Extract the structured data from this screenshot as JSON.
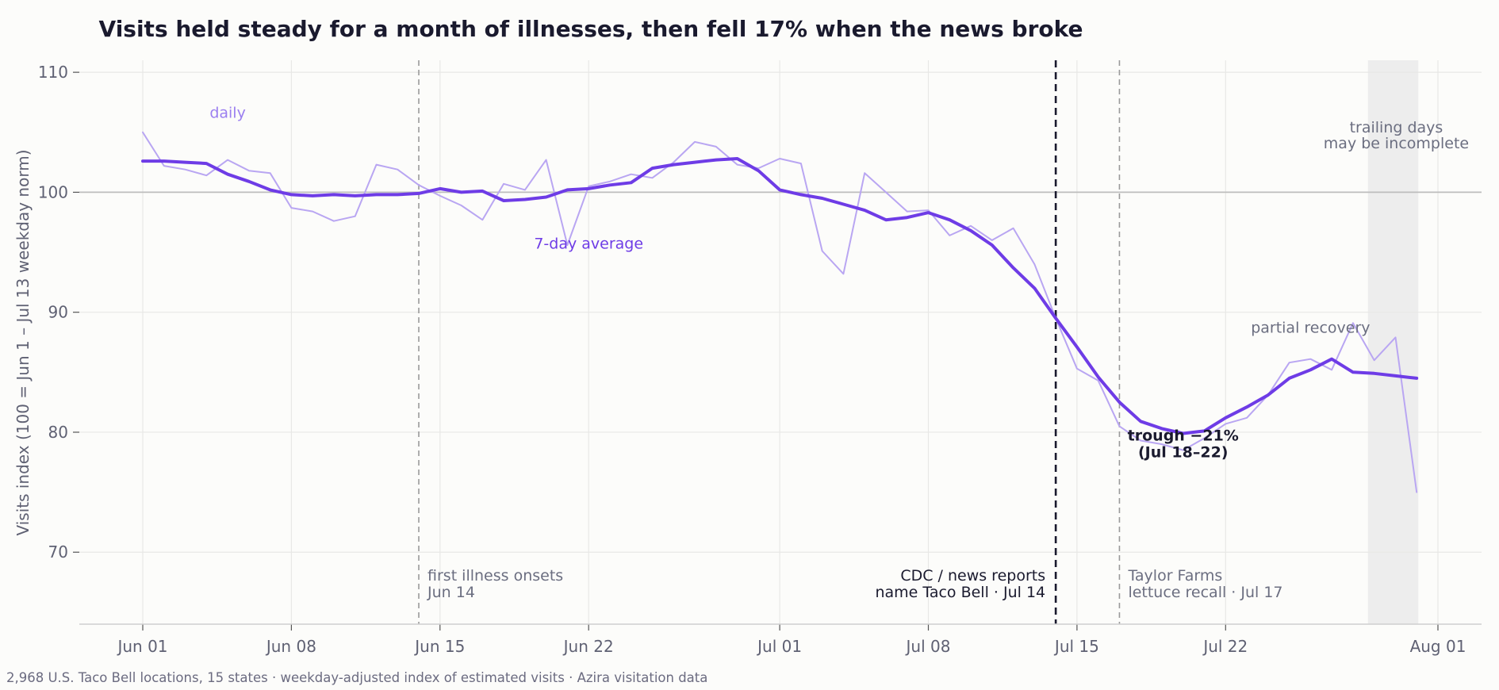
{
  "chart_data": {
    "type": "line",
    "title": "Visits held steady for a month of illnesses, then fell 17% when the news broke",
    "ylabel": "Visits index (100 = Jun 1 – Jul 13 weekday norm)",
    "xlabel": "",
    "ylim": [
      64,
      111
    ],
    "yticks": [
      70,
      80,
      90,
      100,
      110
    ],
    "x_range": [
      "2025-05-27",
      "2025-08-04"
    ],
    "x_ticks": [
      {
        "date": "2025-06-01",
        "label": "Jun 01"
      },
      {
        "date": "2025-06-08",
        "label": "Jun 08"
      },
      {
        "date": "2025-06-15",
        "label": "Jun 15"
      },
      {
        "date": "2025-06-22",
        "label": "Jun 22"
      },
      {
        "date": "2025-07-01",
        "label": "Jul 01"
      },
      {
        "date": "2025-07-08",
        "label": "Jul 08"
      },
      {
        "date": "2025-07-15",
        "label": "Jul 15"
      },
      {
        "date": "2025-07-22",
        "label": "Jul 22"
      },
      {
        "date": "2025-08-01",
        "label": "Aug 01"
      }
    ],
    "grid": true,
    "reference_line": 100,
    "shaded_region": {
      "x_start": "2025-07-29",
      "x_end": "2025-07-31",
      "label": "trailing days\nmay be incomplete"
    },
    "colors": {
      "avg": "#6e3ce6",
      "daily": "#b9a6f2",
      "text": "#1a1a2e",
      "muted": "#6b6e80",
      "grid": "#e8e8e6",
      "baseline": "#bdbdbd",
      "shade": "#ededed"
    },
    "x": [
      "2025-06-01",
      "2025-06-02",
      "2025-06-03",
      "2025-06-04",
      "2025-06-05",
      "2025-06-06",
      "2025-06-07",
      "2025-06-08",
      "2025-06-09",
      "2025-06-10",
      "2025-06-11",
      "2025-06-12",
      "2025-06-13",
      "2025-06-14",
      "2025-06-15",
      "2025-06-16",
      "2025-06-17",
      "2025-06-18",
      "2025-06-19",
      "2025-06-20",
      "2025-06-21",
      "2025-06-22",
      "2025-06-23",
      "2025-06-24",
      "2025-06-25",
      "2025-06-26",
      "2025-06-27",
      "2025-06-28",
      "2025-06-29",
      "2025-06-30",
      "2025-07-01",
      "2025-07-02",
      "2025-07-03",
      "2025-07-04",
      "2025-07-05",
      "2025-07-06",
      "2025-07-07",
      "2025-07-08",
      "2025-07-09",
      "2025-07-10",
      "2025-07-11",
      "2025-07-12",
      "2025-07-13",
      "2025-07-14",
      "2025-07-15",
      "2025-07-16",
      "2025-07-17",
      "2025-07-18",
      "2025-07-19",
      "2025-07-20",
      "2025-07-21",
      "2025-07-22",
      "2025-07-23",
      "2025-07-24",
      "2025-07-25",
      "2025-07-26",
      "2025-07-27",
      "2025-07-28",
      "2025-07-29",
      "2025-07-30",
      "2025-07-31"
    ],
    "series": [
      {
        "name": "daily",
        "style": "thin",
        "values": [
          105.0,
          102.2,
          101.9,
          101.4,
          102.7,
          101.8,
          101.6,
          98.7,
          98.4,
          97.6,
          98.0,
          102.3,
          101.9,
          100.6,
          99.7,
          98.9,
          97.7,
          100.7,
          100.2,
          102.7,
          95.6,
          100.5,
          100.9,
          101.5,
          101.2,
          102.5,
          104.2,
          103.8,
          102.3,
          102.0,
          102.8,
          102.4,
          95.1,
          93.2,
          101.6,
          100.0,
          98.4,
          98.5,
          96.4,
          97.2,
          96.0,
          97.0,
          94.0,
          89.5,
          85.3,
          84.3,
          80.5,
          79.3,
          79.0,
          78.5,
          79.5,
          80.7,
          81.2,
          83.1,
          85.8,
          86.1,
          85.2,
          89.1,
          86.0,
          87.9,
          75.0
        ]
      },
      {
        "name": "7-day average",
        "style": "bold",
        "values": [
          102.6,
          102.6,
          102.5,
          102.4,
          101.5,
          100.9,
          100.2,
          99.8,
          99.7,
          99.8,
          99.7,
          99.8,
          99.8,
          99.9,
          100.3,
          100.0,
          100.1,
          99.3,
          99.4,
          99.6,
          100.2,
          100.3,
          100.6,
          100.8,
          102.0,
          102.3,
          102.5,
          102.7,
          102.8,
          101.8,
          100.2,
          99.8,
          99.5,
          99.0,
          98.5,
          97.7,
          97.9,
          98.3,
          97.7,
          96.8,
          95.6,
          93.7,
          92.0,
          89.5,
          87.1,
          84.6,
          82.5,
          80.9,
          80.3,
          79.9,
          80.1,
          81.2,
          82.1,
          83.1,
          84.5,
          85.2,
          86.1,
          85.0,
          84.9,
          84.7,
          84.5
        ]
      }
    ],
    "vlines": [
      {
        "date": "2025-06-14",
        "style": "dashed-gray",
        "label": "first illness onsets\nJun 14"
      },
      {
        "date": "2025-07-14",
        "style": "dashed-black",
        "label": "CDC / news reports\nname Taco Bell · Jul 14"
      },
      {
        "date": "2025-07-17",
        "style": "dashed-gray",
        "label": "Taylor Farms\nlettuce recall · Jul 17"
      }
    ],
    "annotations": [
      {
        "text": "daily",
        "date": "2025-06-05",
        "y": 106.2,
        "kind": "daily-label"
      },
      {
        "text": "7-day average",
        "date": "2025-06-22",
        "y": 95.3,
        "kind": "avg-label"
      },
      {
        "text": "trough −21%\n(Jul 18–22)",
        "date": "2025-07-20",
        "y": 79.3,
        "kind": "bold"
      },
      {
        "text": "partial recovery",
        "date": "2025-07-26",
        "y": 88.3,
        "kind": "muted"
      }
    ],
    "footnote": "2,968 U.S. Taco Bell locations, 15 states · weekday-adjusted index of estimated visits · Azira visitation data"
  }
}
